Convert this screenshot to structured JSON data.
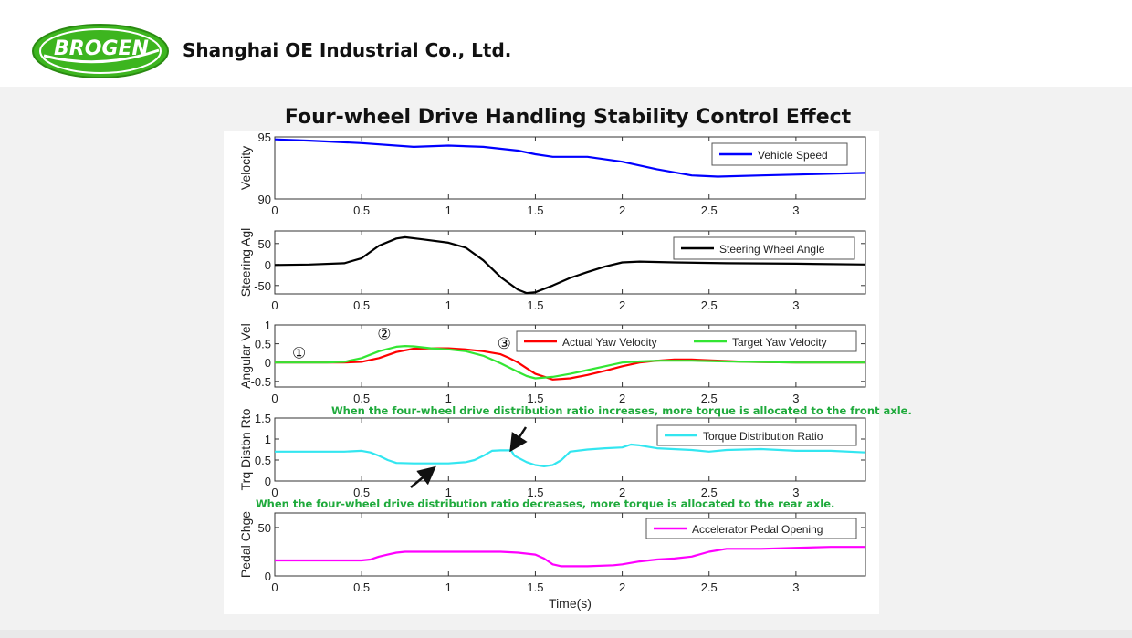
{
  "company": {
    "name": "Shanghai OE Industrial Co., Ltd.",
    "logo_text": "BROGEN"
  },
  "title": "Four-wheel Drive Handling Stability Control Effect",
  "notes": {
    "increase": "When the four-wheel drive distribution ratio increases, more torque is allocated to the front axle.",
    "decrease": "When the four-wheel drive distribution ratio decreases, more torque is allocated to the rear axle."
  },
  "colors": {
    "vehicle_speed": "#0000ff",
    "steering": "#000000",
    "actual_yaw": "#ff0000",
    "target_yaw": "#33e633",
    "torque_ratio": "#33e6f0",
    "pedal": "#ff00ff",
    "note_green": "#1faa3c",
    "logo_green": "#3db51f"
  },
  "chart_data": [
    {
      "type": "line",
      "ylabel": "Velocity",
      "xlabel": "",
      "xlim": [
        0,
        3.4
      ],
      "ylim": [
        90,
        95
      ],
      "xticks": [
        0,
        0.5,
        1,
        1.5,
        2,
        2.5,
        3
      ],
      "xtick_labels": [
        "0",
        "0.5",
        "1",
        "1.5",
        "2",
        "2.5",
        "3"
      ],
      "yticks": [
        90,
        95
      ],
      "ytick_labels": [
        "90",
        "95"
      ],
      "legend": "top-right",
      "series": [
        {
          "name": "Vehicle Speed",
          "color": "#0000ff",
          "x": [
            0,
            0.2,
            0.5,
            0.8,
            1.0,
            1.2,
            1.4,
            1.5,
            1.6,
            1.8,
            2.0,
            2.2,
            2.4,
            2.55,
            2.8,
            3.1,
            3.4
          ],
          "y": [
            94.8,
            94.7,
            94.5,
            94.2,
            94.3,
            94.2,
            93.9,
            93.6,
            93.4,
            93.4,
            93.0,
            92.4,
            91.9,
            91.8,
            91.9,
            92.0,
            92.1
          ]
        }
      ]
    },
    {
      "type": "line",
      "ylabel": "Steering Agl",
      "xlabel": "",
      "xlim": [
        0,
        3.4
      ],
      "ylim": [
        -70,
        80
      ],
      "xticks": [
        0,
        0.5,
        1,
        1.5,
        2,
        2.5,
        3
      ],
      "xtick_labels": [
        "0",
        "0.5",
        "1",
        "1.5",
        "2",
        "2.5",
        "3"
      ],
      "yticks": [
        -50,
        0,
        50
      ],
      "ytick_labels": [
        "-50",
        "0",
        "50"
      ],
      "legend": "top-right",
      "series": [
        {
          "name": "Steering Wheel Angle",
          "color": "#000000",
          "x": [
            0,
            0.2,
            0.4,
            0.5,
            0.6,
            0.7,
            0.75,
            0.85,
            1.0,
            1.1,
            1.2,
            1.3,
            1.4,
            1.45,
            1.5,
            1.6,
            1.7,
            1.8,
            1.9,
            2.0,
            2.1,
            2.3,
            2.6,
            3.0,
            3.4
          ],
          "y": [
            -1,
            0,
            3,
            15,
            45,
            62,
            65,
            60,
            52,
            40,
            10,
            -30,
            -60,
            -68,
            -66,
            -50,
            -32,
            -18,
            -5,
            5,
            7,
            5,
            3,
            2,
            0
          ]
        }
      ]
    },
    {
      "type": "line",
      "ylabel": "Angular Vel",
      "xlabel": "",
      "xlim": [
        0,
        3.4
      ],
      "ylim": [
        -0.65,
        1
      ],
      "xticks": [
        0,
        0.5,
        1,
        1.5,
        2,
        2.5,
        3
      ],
      "xtick_labels": [
        "0",
        "0.5",
        "1",
        "1.5",
        "2",
        "2.5",
        "3"
      ],
      "yticks": [
        -0.5,
        0,
        0.5,
        1
      ],
      "ytick_labels": [
        "-0.5",
        "0",
        "0.5",
        "1"
      ],
      "legend": "top-right",
      "annotations": [
        {
          "text": "①",
          "x": 0.14,
          "y": 0.12
        },
        {
          "text": "②",
          "x": 0.63,
          "y": 0.62
        },
        {
          "text": "③",
          "x": 1.32,
          "y": 0.37
        }
      ],
      "series": [
        {
          "name": "Actual Yaw Velocity",
          "color": "#ff0000",
          "x": [
            0,
            0.4,
            0.5,
            0.6,
            0.7,
            0.8,
            0.9,
            1.0,
            1.1,
            1.2,
            1.3,
            1.35,
            1.4,
            1.45,
            1.5,
            1.6,
            1.7,
            1.8,
            1.9,
            2.0,
            2.1,
            2.2,
            2.3,
            2.4,
            2.5,
            2.7,
            3.0,
            3.4
          ],
          "y": [
            0,
            0,
            0.02,
            0.12,
            0.28,
            0.37,
            0.38,
            0.38,
            0.35,
            0.3,
            0.22,
            0.12,
            0.0,
            -0.15,
            -0.3,
            -0.45,
            -0.42,
            -0.33,
            -0.22,
            -0.1,
            0.0,
            0.05,
            0.08,
            0.08,
            0.06,
            0.02,
            0.0,
            0.0
          ]
        },
        {
          "name": "Target Yaw Velocity",
          "color": "#33e633",
          "x": [
            0,
            0.3,
            0.4,
            0.5,
            0.6,
            0.7,
            0.75,
            0.8,
            0.9,
            1.0,
            1.1,
            1.2,
            1.3,
            1.4,
            1.45,
            1.5,
            1.6,
            1.7,
            1.8,
            1.9,
            2.0,
            2.1,
            2.2,
            2.4,
            2.6,
            3.0,
            3.4
          ],
          "y": [
            0,
            0,
            0.02,
            0.12,
            0.3,
            0.42,
            0.44,
            0.43,
            0.38,
            0.35,
            0.3,
            0.18,
            -0.02,
            -0.25,
            -0.36,
            -0.42,
            -0.38,
            -0.3,
            -0.2,
            -0.1,
            0.0,
            0.03,
            0.05,
            0.05,
            0.03,
            0.0,
            0.0
          ]
        }
      ]
    },
    {
      "type": "line",
      "ylabel": "Trq Distbn Rto",
      "xlabel": "",
      "xlim": [
        0,
        3.4
      ],
      "ylim": [
        0,
        1.5
      ],
      "xticks": [
        0,
        0.5,
        1,
        1.5,
        2,
        2.5,
        3
      ],
      "xtick_labels": [
        "0",
        "0.5",
        "1",
        "1.5",
        "2",
        "2.5",
        "3"
      ],
      "yticks": [
        0,
        0.5,
        1,
        1.5
      ],
      "ytick_labels": [
        "0",
        "0.5",
        "1",
        "1.5"
      ],
      "legend": "top-right",
      "series": [
        {
          "name": "Torque Distribution Ratio",
          "color": "#33e6f0",
          "x": [
            0,
            0.4,
            0.5,
            0.55,
            0.6,
            0.65,
            0.7,
            0.8,
            1.0,
            1.1,
            1.15,
            1.2,
            1.25,
            1.3,
            1.36,
            1.38,
            1.45,
            1.5,
            1.55,
            1.6,
            1.65,
            1.7,
            1.8,
            1.9,
            2.0,
            2.05,
            2.1,
            2.2,
            2.4,
            2.5,
            2.6,
            2.8,
            3.0,
            3.2,
            3.4
          ],
          "y": [
            0.7,
            0.7,
            0.72,
            0.68,
            0.6,
            0.5,
            0.43,
            0.42,
            0.42,
            0.45,
            0.5,
            0.6,
            0.72,
            0.73,
            0.73,
            0.6,
            0.45,
            0.38,
            0.35,
            0.38,
            0.5,
            0.7,
            0.75,
            0.78,
            0.8,
            0.87,
            0.85,
            0.78,
            0.74,
            0.7,
            0.74,
            0.76,
            0.72,
            0.72,
            0.68
          ]
        }
      ]
    },
    {
      "type": "line",
      "ylabel": "Pedal Chge",
      "xlabel": "Time(s)",
      "xlim": [
        0,
        3.4
      ],
      "ylim": [
        0,
        65
      ],
      "xticks": [
        0,
        0.5,
        1,
        1.5,
        2,
        2.5,
        3
      ],
      "xtick_labels": [
        "0",
        "0.5",
        "1",
        "1.5",
        "2",
        "2.5",
        "3"
      ],
      "yticks": [
        0,
        50
      ],
      "ytick_labels": [
        "0",
        "50"
      ],
      "legend": "top-right",
      "series": [
        {
          "name": "Accelerator Pedal Opening",
          "color": "#ff00ff",
          "x": [
            0,
            0.5,
            0.55,
            0.6,
            0.65,
            0.7,
            0.75,
            0.8,
            1.0,
            1.3,
            1.4,
            1.5,
            1.55,
            1.6,
            1.65,
            1.8,
            1.95,
            2.0,
            2.1,
            2.2,
            2.3,
            2.4,
            2.5,
            2.6,
            2.8,
            3.0,
            3.2,
            3.4
          ],
          "y": [
            16,
            16,
            17,
            20,
            22,
            24,
            25,
            25,
            25,
            25,
            24,
            22,
            18,
            12,
            10,
            10,
            11,
            12,
            15,
            17,
            18,
            20,
            25,
            28,
            28,
            29,
            30,
            30
          ]
        }
      ]
    }
  ]
}
